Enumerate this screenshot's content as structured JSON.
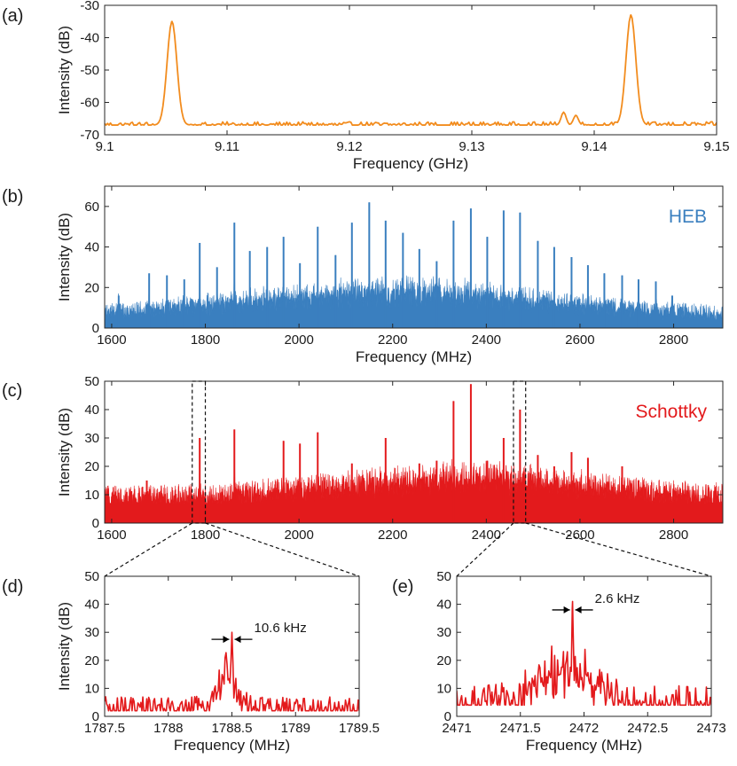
{
  "chart_data": [
    {
      "id": "a",
      "panel_label": "(a)",
      "type": "line",
      "xlabel": "Frequency (GHz)",
      "ylabel": "Intensity (dB)",
      "xlim": [
        9.1,
        9.15
      ],
      "ylim": [
        -70,
        -30
      ],
      "xticks": [
        "9.1",
        "9.11",
        "9.12",
        "9.13",
        "9.14",
        "9.15"
      ],
      "yticks": [
        "-70",
        "-60",
        "-50",
        "-40",
        "-30"
      ],
      "color": "#F28C1E",
      "noise_floor": -67,
      "noise_amp": 1.0,
      "peaks": [
        {
          "x": 9.1055,
          "y": -35,
          "width": 0.0004
        },
        {
          "x": 9.143,
          "y": -33,
          "width": 0.0004
        },
        {
          "x": 9.1375,
          "y": -63,
          "width": 0.0002
        },
        {
          "x": 9.1385,
          "y": -64,
          "width": 0.0002
        }
      ]
    },
    {
      "id": "b",
      "panel_label": "(b)",
      "type": "line",
      "series_label": "HEB",
      "xlabel": "Frequency (MHz)",
      "ylabel": "Intensity (dB)",
      "xlim": [
        1585,
        2905
      ],
      "ylim": [
        0,
        70
      ],
      "xticks": [
        "1600",
        "1800",
        "2000",
        "2200",
        "2400",
        "2600",
        "2800"
      ],
      "yticks": [
        "0",
        "20",
        "40",
        "60"
      ],
      "color": "#3A7FBF",
      "noise_floor": 4,
      "noise_amp": 5,
      "envelope": {
        "center": 2200,
        "sigma": 330,
        "height": 12
      },
      "peaks": [
        {
          "x": 1615,
          "y": 16
        },
        {
          "x": 1680,
          "y": 27
        },
        {
          "x": 1718,
          "y": 26
        },
        {
          "x": 1755,
          "y": 24
        },
        {
          "x": 1788,
          "y": 42
        },
        {
          "x": 1825,
          "y": 30
        },
        {
          "x": 1862,
          "y": 52
        },
        {
          "x": 1895,
          "y": 38
        },
        {
          "x": 1932,
          "y": 40
        },
        {
          "x": 1967,
          "y": 45
        },
        {
          "x": 2002,
          "y": 32
        },
        {
          "x": 2040,
          "y": 50
        },
        {
          "x": 2078,
          "y": 36
        },
        {
          "x": 2113,
          "y": 52
        },
        {
          "x": 2150,
          "y": 62
        },
        {
          "x": 2185,
          "y": 53
        },
        {
          "x": 2222,
          "y": 47
        },
        {
          "x": 2257,
          "y": 39
        },
        {
          "x": 2294,
          "y": 33
        },
        {
          "x": 2330,
          "y": 53
        },
        {
          "x": 2367,
          "y": 59
        },
        {
          "x": 2402,
          "y": 45
        },
        {
          "x": 2437,
          "y": 58
        },
        {
          "x": 2472,
          "y": 57
        },
        {
          "x": 2510,
          "y": 43
        },
        {
          "x": 2545,
          "y": 40
        },
        {
          "x": 2582,
          "y": 35
        },
        {
          "x": 2617,
          "y": 31
        },
        {
          "x": 2652,
          "y": 27
        },
        {
          "x": 2690,
          "y": 26
        },
        {
          "x": 2725,
          "y": 24
        },
        {
          "x": 2762,
          "y": 23
        },
        {
          "x": 2797,
          "y": 16
        }
      ]
    },
    {
      "id": "c",
      "panel_label": "(c)",
      "type": "line",
      "series_label": "Schottky",
      "xlabel": "",
      "ylabel": "Intensity (dB)",
      "xlim": [
        1585,
        2905
      ],
      "ylim": [
        0,
        50
      ],
      "xticks": [
        "1600",
        "1800",
        "2000",
        "2200",
        "2400",
        "2600",
        "2800"
      ],
      "yticks": [
        "0",
        "10",
        "20",
        "30",
        "40",
        "50"
      ],
      "color": "#E31A1C",
      "noise_floor": 7,
      "noise_amp": 5,
      "envelope": {
        "center": 2350,
        "sigma": 280,
        "height": 7
      },
      "peaks": [
        {
          "x": 1675,
          "y": 15
        },
        {
          "x": 1788,
          "y": 30
        },
        {
          "x": 1862,
          "y": 33
        },
        {
          "x": 1967,
          "y": 29
        },
        {
          "x": 2002,
          "y": 28
        },
        {
          "x": 2040,
          "y": 32
        },
        {
          "x": 2113,
          "y": 21
        },
        {
          "x": 2185,
          "y": 30
        },
        {
          "x": 2257,
          "y": 21
        },
        {
          "x": 2294,
          "y": 22
        },
        {
          "x": 2330,
          "y": 43
        },
        {
          "x": 2367,
          "y": 49
        },
        {
          "x": 2402,
          "y": 22
        },
        {
          "x": 2437,
          "y": 30
        },
        {
          "x": 2472,
          "y": 40
        },
        {
          "x": 2510,
          "y": 24
        },
        {
          "x": 2545,
          "y": 20
        },
        {
          "x": 2582,
          "y": 25
        },
        {
          "x": 2617,
          "y": 23
        },
        {
          "x": 2690,
          "y": 20
        },
        {
          "x": 2725,
          "y": 15
        }
      ],
      "zoom_regions": [
        [
          1772,
          1800
        ],
        [
          2458,
          2484
        ]
      ]
    },
    {
      "id": "d",
      "panel_label": "(d)",
      "type": "line",
      "xlabel": "Frequency (MHz)",
      "ylabel": "Intensity (dB)",
      "xlim": [
        1787.5,
        1789.5
      ],
      "ylim": [
        0,
        50
      ],
      "xticks": [
        "1787.5",
        "1788",
        "1788.5",
        "1789",
        "1789.5"
      ],
      "yticks": [
        "0",
        "10",
        "20",
        "30",
        "40",
        "50"
      ],
      "color": "#E31A1C",
      "noise_floor": 2,
      "noise_amp": 5,
      "envelope": {
        "center": 1788.45,
        "sigma": 0.08,
        "height": 12
      },
      "peaks": [
        {
          "x": 1788.5,
          "y": 30,
          "width": 0.008
        }
      ],
      "annotation": {
        "text": "10.6 kHz",
        "x": 1788.5,
        "y": 27.5
      }
    },
    {
      "id": "e",
      "panel_label": "(e)",
      "type": "line",
      "xlabel": "Frequency (MHz)",
      "ylabel": "",
      "xlim": [
        2471,
        2473
      ],
      "ylim": [
        0,
        50
      ],
      "xticks": [
        "2471",
        "2471.5",
        "2472",
        "2472.5",
        "2473"
      ],
      "yticks": [
        "0",
        "10",
        "20",
        "30",
        "40",
        "50"
      ],
      "color": "#E31A1C",
      "noise_floor": 4,
      "noise_amp": 7,
      "envelope": {
        "center": 2471.85,
        "sigma": 0.22,
        "height": 13
      },
      "peaks": [
        {
          "x": 2471.91,
          "y": 41,
          "width": 0.006
        }
      ],
      "annotation": {
        "text": "2.6 kHz",
        "x": 2471.91,
        "y": 38
      }
    }
  ]
}
